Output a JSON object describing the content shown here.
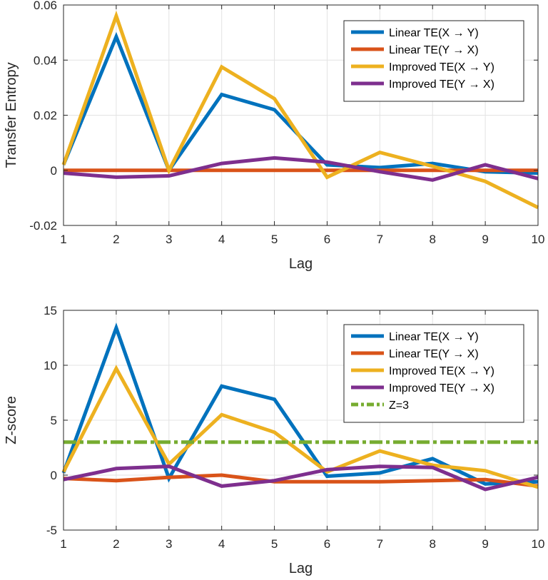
{
  "chart_data": [
    {
      "type": "line",
      "xlabel": "Lag",
      "ylabel": "Transfer Entropy",
      "x": [
        1,
        2,
        3,
        4,
        5,
        6,
        7,
        8,
        9,
        10
      ],
      "xlim": [
        1,
        10
      ],
      "ylim": [
        -0.02,
        0.06
      ],
      "xticks": [
        "1",
        "2",
        "3",
        "4",
        "5",
        "6",
        "7",
        "8",
        "9",
        "10"
      ],
      "yticks": [
        {
          "value": -0.02,
          "label": "-0.02"
        },
        {
          "value": 0,
          "label": "0"
        },
        {
          "value": 0.02,
          "label": "0.02"
        },
        {
          "value": 0.04,
          "label": "0.04"
        },
        {
          "value": 0.06,
          "label": "0.06"
        }
      ],
      "grid": true,
      "legend_position": "top-right",
      "series": [
        {
          "name": "Linear TE(X → Y)",
          "color": "#0072bd",
          "dashed": false,
          "values": [
            0.002,
            0.0485,
            0.0,
            0.0275,
            0.022,
            0.002,
            0.001,
            0.0025,
            -0.0005,
            -0.001
          ]
        },
        {
          "name": "Linear TE(Y → X)",
          "color": "#d95319",
          "dashed": false,
          "values": [
            0,
            0,
            0,
            0,
            0,
            0,
            0,
            0,
            0,
            0
          ]
        },
        {
          "name": "Improved TE(X → Y)",
          "color": "#edb120",
          "dashed": false,
          "values": [
            0.002,
            0.056,
            0.0,
            0.0375,
            0.026,
            -0.0025,
            0.0065,
            0.0015,
            -0.004,
            -0.0135
          ]
        },
        {
          "name": "Improved TE(Y → X)",
          "color": "#7e2f8e",
          "dashed": false,
          "values": [
            -0.001,
            -0.0025,
            -0.002,
            0.0025,
            0.0045,
            0.003,
            -0.0005,
            -0.0035,
            0.002,
            -0.003
          ]
        }
      ]
    },
    {
      "type": "line",
      "xlabel": "Lag",
      "ylabel": "Z-score",
      "x": [
        1,
        2,
        3,
        4,
        5,
        6,
        7,
        8,
        9,
        10
      ],
      "xlim": [
        1,
        10
      ],
      "ylim": [
        -5,
        15
      ],
      "xticks": [
        "1",
        "2",
        "3",
        "4",
        "5",
        "6",
        "7",
        "8",
        "9",
        "10"
      ],
      "yticks": [
        {
          "value": -5,
          "label": "-5"
        },
        {
          "value": 0,
          "label": "0"
        },
        {
          "value": 5,
          "label": "5"
        },
        {
          "value": 10,
          "label": "10"
        },
        {
          "value": 15,
          "label": "15"
        }
      ],
      "grid": true,
      "legend_position": "top-right",
      "series": [
        {
          "name": "Linear TE(X → Y)",
          "color": "#0072bd",
          "dashed": false,
          "values": [
            0.2,
            13.4,
            -0.3,
            8.1,
            6.9,
            -0.1,
            0.2,
            1.5,
            -0.8,
            -0.6
          ]
        },
        {
          "name": "Linear TE(Y → X)",
          "color": "#d95319",
          "dashed": false,
          "values": [
            -0.3,
            -0.5,
            -0.2,
            0.0,
            -0.6,
            -0.6,
            -0.6,
            -0.5,
            -0.4,
            -1.0
          ]
        },
        {
          "name": "Improved TE(X → Y)",
          "color": "#edb120",
          "dashed": false,
          "values": [
            0.3,
            9.7,
            1.0,
            5.5,
            3.9,
            0.3,
            2.2,
            0.9,
            0.4,
            -1.1
          ]
        },
        {
          "name": "Improved TE(Y → X)",
          "color": "#7e2f8e",
          "dashed": false,
          "values": [
            -0.4,
            0.6,
            0.8,
            -1.0,
            -0.5,
            0.5,
            0.8,
            0.7,
            -1.3,
            -0.2
          ]
        },
        {
          "name": "Z=3",
          "color": "#77ac30",
          "dashed": true,
          "values": [
            3,
            3,
            3,
            3,
            3,
            3,
            3,
            3,
            3,
            3
          ]
        }
      ]
    }
  ]
}
